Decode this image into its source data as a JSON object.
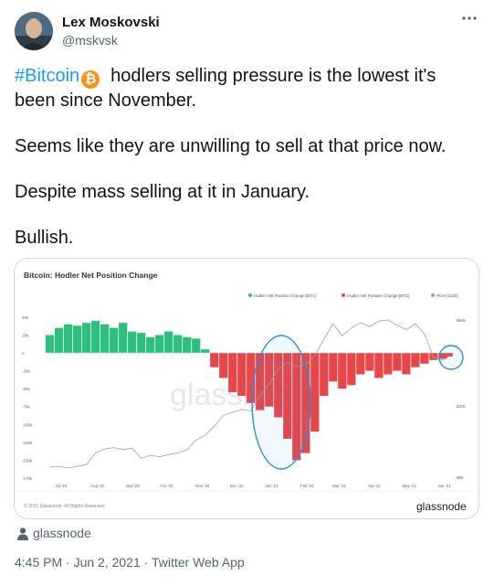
{
  "tweet": {
    "author_name": "Lex Moskovski",
    "author_handle": "@mskvsk",
    "hashtag": "#Bitcoin",
    "line1_rest": "hodlers selling pressure is the lowest it's been since November.",
    "paragraph2": "Seems like they are unwilling to sell at that price now.",
    "paragraph3": "Despite mass selling at it in January.",
    "paragraph4": "Bullish.",
    "media_tag": "glassnode",
    "time": "4:45 PM · Jun 2, 2021",
    "separator": " · ",
    "source": "Twitter Web App",
    "colors": {
      "accent": "#1d9bf0",
      "bitcoin": "#f7931a"
    }
  },
  "chart_data": {
    "type": "bar",
    "title": "Bitcoin: Hodler Net Position Change",
    "legend": [
      {
        "label": "Hodler Net Position Change [BTC]",
        "color": "#2ebf7d"
      },
      {
        "label": "Hodler Net Position Change [BTC]",
        "color": "#e8474a"
      },
      {
        "label": "Price [USD]",
        "color": "#9aa0a6"
      }
    ],
    "legend_placement": "top-right",
    "watermark": "glassnode",
    "brand": "glassnode",
    "copyright": "© 2021 Glassnode. All Rights Reserved.",
    "ylabels_left": [
      "50k",
      "25k",
      "0",
      "-25k",
      "-50k",
      "-75k",
      "-100k",
      "-125k",
      "-150k",
      "-175k"
    ],
    "ylim_left": [
      -175000,
      55000
    ],
    "ylabels_right": [
      "$60k",
      "$20k",
      "$8k"
    ],
    "xlabels": [
      "Jul '20",
      "Aug '20",
      "Sep '20",
      "Oct '20",
      "Nov '20",
      "Dec '20",
      "Jan '21",
      "Feb '21",
      "Mar '21",
      "Apr '21",
      "May '21",
      "Jun '21"
    ],
    "x_dates": [
      "2020-06-18",
      "2020-06-26",
      "2020-07-04",
      "2020-07-12",
      "2020-07-20",
      "2020-07-28",
      "2020-08-05",
      "2020-08-13",
      "2020-08-21",
      "2020-08-29",
      "2020-09-06",
      "2020-09-14",
      "2020-09-22",
      "2020-09-30",
      "2020-10-08",
      "2020-10-16",
      "2020-10-24",
      "2020-11-01",
      "2020-11-09",
      "2020-11-17",
      "2020-11-25",
      "2020-12-03",
      "2020-12-11",
      "2020-12-19",
      "2020-12-27",
      "2021-01-04",
      "2021-01-12",
      "2021-01-20",
      "2021-01-28",
      "2021-02-05",
      "2021-02-13",
      "2021-02-21",
      "2021-03-01",
      "2021-03-09",
      "2021-03-17",
      "2021-03-25",
      "2021-04-02",
      "2021-04-10",
      "2021-04-18",
      "2021-04-26",
      "2021-05-04",
      "2021-05-12",
      "2021-05-20",
      "2021-05-28",
      "2021-06-02"
    ],
    "net_position_change": [
      25000,
      35000,
      40000,
      38000,
      42000,
      45000,
      40000,
      35000,
      42000,
      30000,
      28000,
      22000,
      25000,
      30000,
      25000,
      22000,
      20000,
      5000,
      -20000,
      -35000,
      -55000,
      -60000,
      -70000,
      -80000,
      -75000,
      -90000,
      -120000,
      -150000,
      -140000,
      -110000,
      -60000,
      -40000,
      -50000,
      -45000,
      -30000,
      -25000,
      -35000,
      -30000,
      -25000,
      -30000,
      -20000,
      -15000,
      -10000,
      -8000,
      -5000
    ],
    "price_usd": [
      9200,
      9300,
      9100,
      9300,
      9500,
      11000,
      11600,
      11800,
      11500,
      11700,
      10300,
      10700,
      10500,
      10800,
      11000,
      11500,
      13000,
      13800,
      15500,
      17800,
      18500,
      19200,
      18800,
      23000,
      26500,
      32000,
      35000,
      33000,
      34000,
      38000,
      47000,
      57000,
      49000,
      54000,
      58000,
      55000,
      59000,
      60000,
      56000,
      53000,
      57000,
      50000,
      37000,
      36000,
      37500
    ],
    "highlights": [
      "January selling circled",
      "June net position circled"
    ]
  }
}
